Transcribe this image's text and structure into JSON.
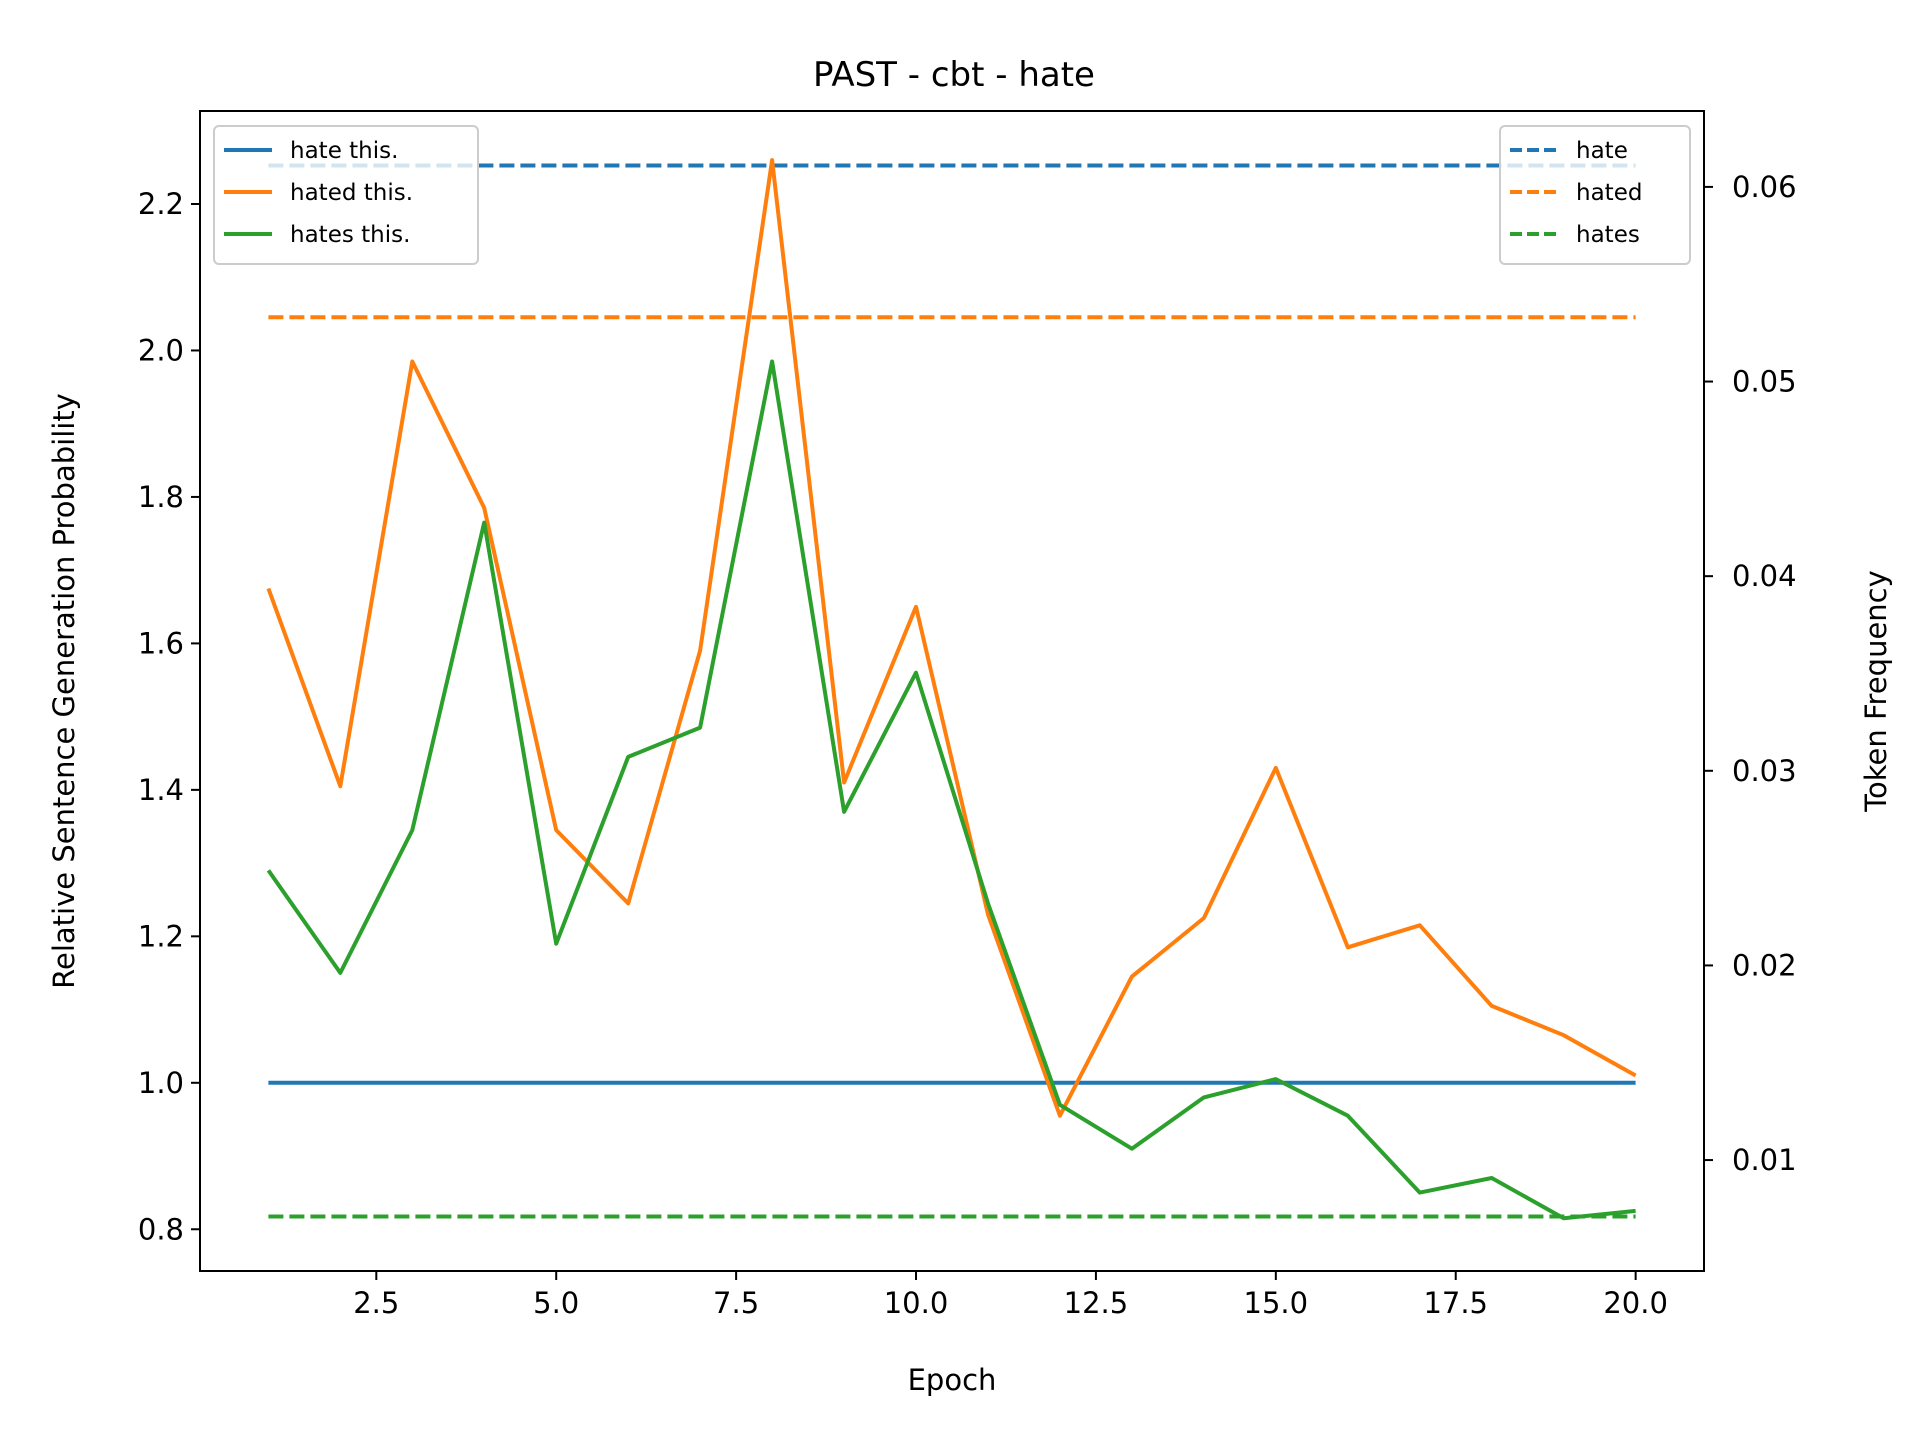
{
  "chart_data": {
    "type": "line",
    "title": "PAST - cbt - hate",
    "xlabel": "Epoch",
    "ylabel": "Relative Sentence Generation Probability",
    "y2label": "Token Frequency",
    "xlim": [
      0.05,
      20.95
    ],
    "ylim": [
      0.743,
      2.327
    ],
    "y2lim": [
      0.0043,
      0.0639
    ],
    "x_ticks": [
      2.5,
      5.0,
      7.5,
      10.0,
      12.5,
      15.0,
      17.5,
      20.0
    ],
    "x_tick_labels": [
      "2.5",
      "5.0",
      "7.5",
      "10.0",
      "12.5",
      "15.0",
      "17.5",
      "20.0"
    ],
    "y_ticks": [
      0.8,
      1.0,
      1.2,
      1.4,
      1.6,
      1.8,
      2.0,
      2.2
    ],
    "y_tick_labels": [
      "0.8",
      "1.0",
      "1.2",
      "1.4",
      "1.6",
      "1.8",
      "2.0",
      "2.2"
    ],
    "y2_ticks": [
      0.01,
      0.02,
      0.03,
      0.04,
      0.05,
      0.06
    ],
    "y2_tick_labels": [
      "0.01",
      "0.02",
      "0.03",
      "0.04",
      "0.05",
      "0.06"
    ],
    "x": [
      1,
      2,
      3,
      4,
      5,
      6,
      7,
      8,
      9,
      10,
      11,
      12,
      13,
      14,
      15,
      16,
      17,
      18,
      19,
      20
    ],
    "series": [
      {
        "name": "hate this.",
        "axis": "left",
        "style": "solid",
        "color": "#1f77b4",
        "values": [
          1.0,
          1.0,
          1.0,
          1.0,
          1.0,
          1.0,
          1.0,
          1.0,
          1.0,
          1.0,
          1.0,
          1.0,
          1.0,
          1.0,
          1.0,
          1.0,
          1.0,
          1.0,
          1.0,
          1.0
        ]
      },
      {
        "name": "hated this.",
        "axis": "left",
        "style": "solid",
        "color": "#ff7f0e",
        "values": [
          1.675,
          1.405,
          1.985,
          1.785,
          1.345,
          1.245,
          1.59,
          2.26,
          1.41,
          1.65,
          1.23,
          0.955,
          1.145,
          1.225,
          1.43,
          1.185,
          1.215,
          1.105,
          1.065,
          1.01
        ]
      },
      {
        "name": "hates this.",
        "axis": "left",
        "style": "solid",
        "color": "#2ca02c",
        "values": [
          1.29,
          1.15,
          1.345,
          1.765,
          1.19,
          1.445,
          1.485,
          1.985,
          1.37,
          1.56,
          1.245,
          0.97,
          0.91,
          0.98,
          1.005,
          0.955,
          0.85,
          0.87,
          0.815,
          0.825
        ]
      },
      {
        "name": "hate",
        "axis": "right",
        "style": "dashed",
        "color": "#1f77b4",
        "values": [
          0.0611,
          0.0611,
          0.0611,
          0.0611,
          0.0611,
          0.0611,
          0.0611,
          0.0611,
          0.0611,
          0.0611,
          0.0611,
          0.0611,
          0.0611,
          0.0611,
          0.0611,
          0.0611,
          0.0611,
          0.0611,
          0.0611,
          0.0611
        ]
      },
      {
        "name": "hated",
        "axis": "right",
        "style": "dashed",
        "color": "#ff7f0e",
        "values": [
          0.0533,
          0.0533,
          0.0533,
          0.0533,
          0.0533,
          0.0533,
          0.0533,
          0.0533,
          0.0533,
          0.0533,
          0.0533,
          0.0533,
          0.0533,
          0.0533,
          0.0533,
          0.0533,
          0.0533,
          0.0533,
          0.0533,
          0.0533
        ]
      },
      {
        "name": "hates",
        "axis": "right",
        "style": "dashed",
        "color": "#2ca02c",
        "values": [
          0.0071,
          0.0071,
          0.0071,
          0.0071,
          0.0071,
          0.0071,
          0.0071,
          0.0071,
          0.0071,
          0.0071,
          0.0071,
          0.0071,
          0.0071,
          0.0071,
          0.0071,
          0.0071,
          0.0071,
          0.0071,
          0.0071,
          0.0071
        ]
      }
    ],
    "legends": [
      {
        "placement": "upper left",
        "entries": [
          "hate this.",
          "hated this.",
          "hates this."
        ]
      },
      {
        "placement": "upper right",
        "entries": [
          "hate",
          "hated",
          "hates"
        ]
      }
    ],
    "grid": false
  }
}
